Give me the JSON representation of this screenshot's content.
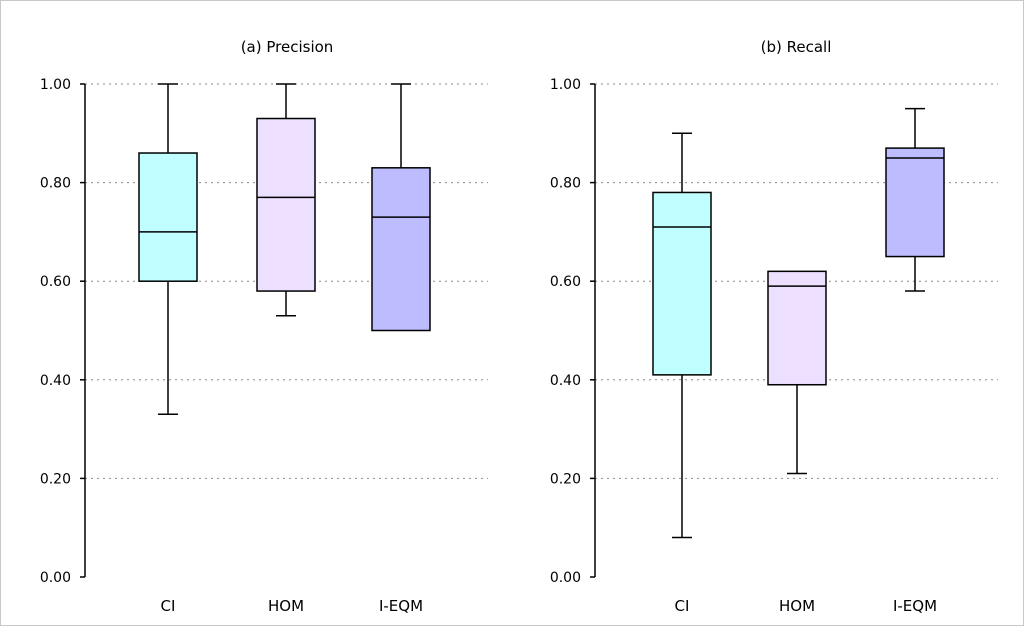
{
  "chart_data": [
    {
      "type": "box",
      "title": "(a) Precision",
      "categories": [
        "CI",
        "HOM",
        "I-EQM"
      ],
      "colors": [
        "#bfffff",
        "#ecdfff",
        "#bcbcff"
      ],
      "ylim": [
        0,
        1
      ],
      "yticks": [
        "0.00",
        "0.20",
        "0.40",
        "0.60",
        "0.80",
        "1.00"
      ],
      "grid": true,
      "boxes": [
        {
          "min": 0.33,
          "q1": 0.6,
          "median": 0.7,
          "q3": 0.86,
          "max": 1.0
        },
        {
          "min": 0.53,
          "q1": 0.58,
          "median": 0.77,
          "q3": 0.93,
          "max": 1.0
        },
        {
          "min": 0.5,
          "q1": 0.5,
          "median": 0.73,
          "q3": 0.83,
          "max": 1.0
        }
      ]
    },
    {
      "type": "box",
      "title": "(b) Recall",
      "categories": [
        "CI",
        "HOM",
        "I-EQM"
      ],
      "colors": [
        "#bfffff",
        "#ecdfff",
        "#bcbcff"
      ],
      "ylim": [
        0,
        1
      ],
      "yticks": [
        "0.00",
        "0.20",
        "0.40",
        "0.60",
        "0.80",
        "1.00"
      ],
      "grid": true,
      "boxes": [
        {
          "min": 0.08,
          "q1": 0.41,
          "median": 0.71,
          "q3": 0.78,
          "max": 0.9
        },
        {
          "min": 0.21,
          "q1": 0.39,
          "median": 0.59,
          "q3": 0.62,
          "max": 0.62
        },
        {
          "min": 0.58,
          "q1": 0.65,
          "median": 0.85,
          "q3": 0.87,
          "max": 0.95
        }
      ]
    }
  ]
}
